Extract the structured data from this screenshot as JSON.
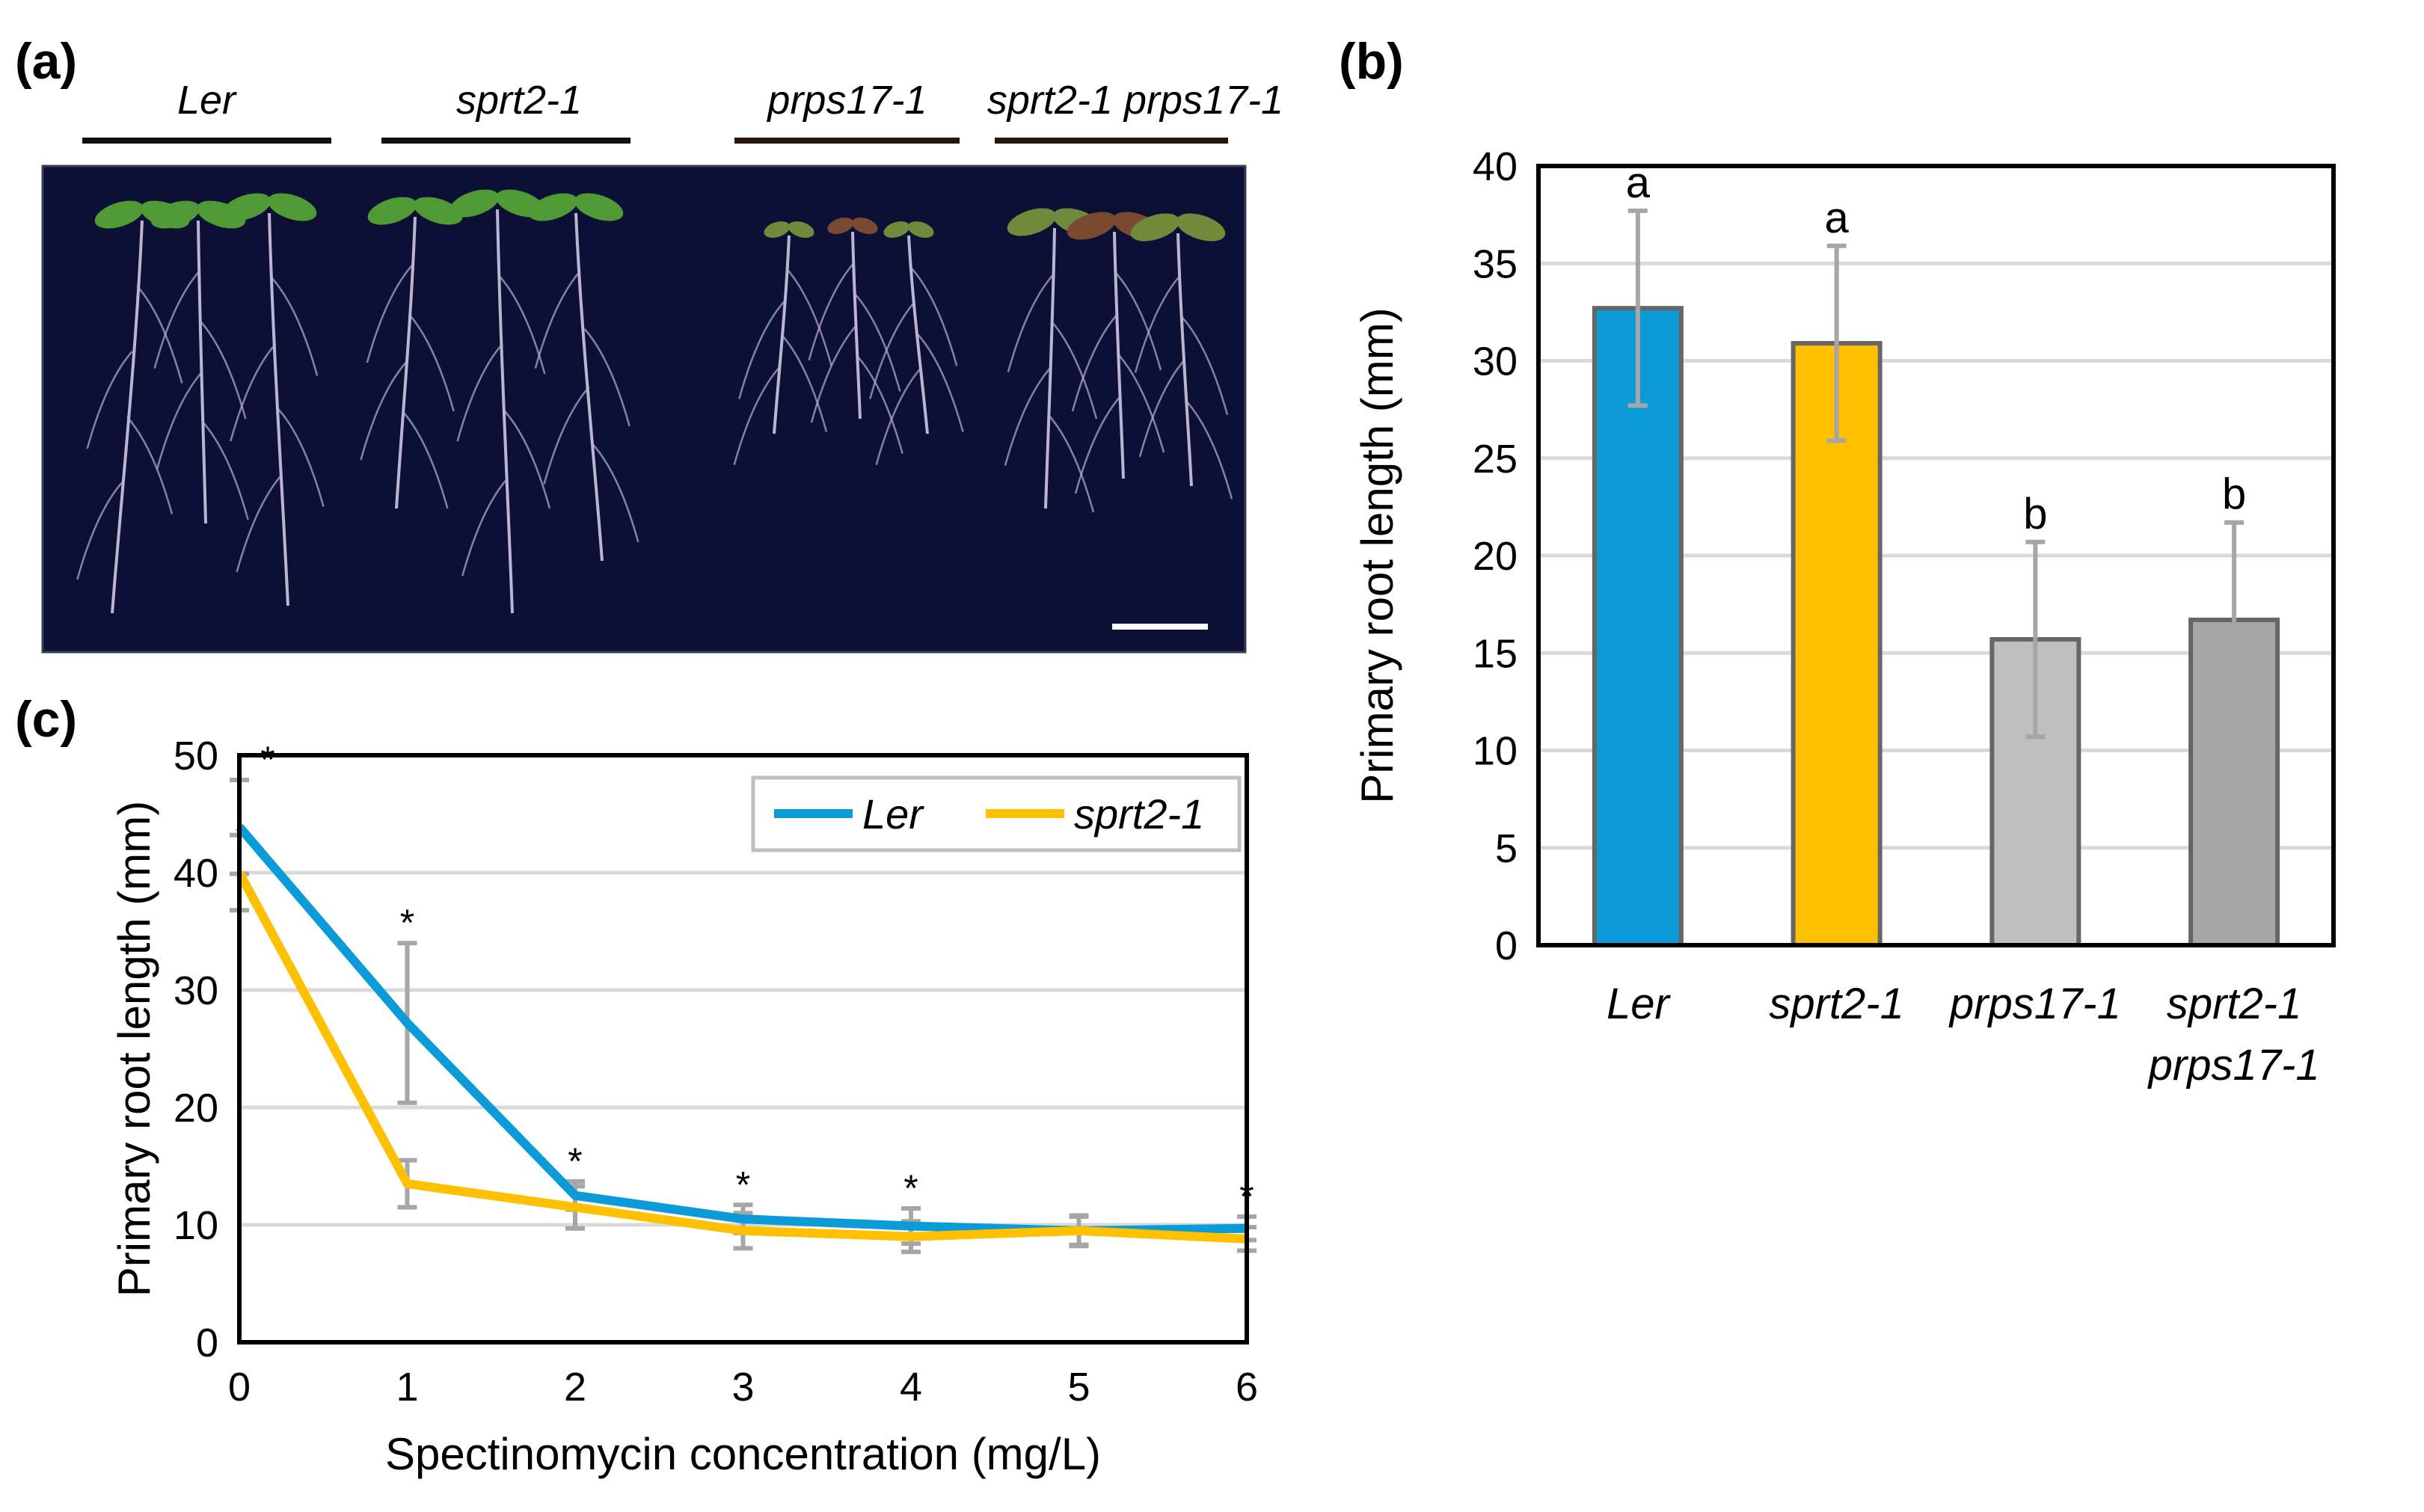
{
  "panels": {
    "a": {
      "label": "(a)",
      "genotypes": [
        "Ler",
        "sprt2-1",
        "prps17-1",
        "sprt2-1 prps17-1"
      ]
    },
    "b": {
      "label": "(b)"
    },
    "c": {
      "label": "(c)"
    }
  },
  "colors": {
    "ler": "#0a9bd8",
    "sprt2": "#ffc000",
    "prps17": "#bfbfbf",
    "double": "#a6a6a6",
    "errorbar": "#a6a6a6",
    "grid": "#d9d9d9",
    "photo_bg": "#0d1035"
  },
  "chart_data": [
    {
      "id": "b",
      "type": "bar",
      "categories": [
        "Ler",
        "sprt2-1",
        "prps17-1",
        "sprt2-1 prps17-1"
      ],
      "category_lines": [
        [
          "Ler"
        ],
        [
          "sprt2-1"
        ],
        [
          "prps17-1"
        ],
        [
          "sprt2-1",
          "prps17-1"
        ]
      ],
      "values": [
        32.7,
        30.9,
        15.7,
        16.7
      ],
      "errors": [
        5.0,
        5.0,
        5.0,
        5.0
      ],
      "significance": [
        "a",
        "a",
        "b",
        "b"
      ],
      "ylabel": "Primary root length (mm)",
      "ylim": [
        0,
        40
      ],
      "yticks": [
        0,
        5,
        10,
        15,
        20,
        25,
        30,
        35,
        40
      ],
      "grid": true
    },
    {
      "id": "c",
      "type": "line",
      "x": [
        0,
        1,
        2,
        3,
        4,
        5,
        6
      ],
      "series": [
        {
          "name": "Ler",
          "values": [
            43.9,
            27.2,
            12.5,
            10.5,
            9.9,
            9.5,
            9.7
          ],
          "errors": [
            4.0,
            6.8,
            1.2,
            1.2,
            1.5,
            1.2,
            1.0
          ]
        },
        {
          "name": "sprt2-1",
          "values": [
            40.0,
            13.5,
            11.5,
            9.5,
            9.0,
            9.5,
            8.8
          ],
          "errors": [
            3.2,
            2.0,
            1.8,
            1.5,
            1.3,
            1.3,
            1.0
          ]
        }
      ],
      "asterisks": [
        0,
        1,
        2,
        3,
        4,
        6
      ],
      "asterisk_symbol": "*",
      "xlabel": "Spectinomycin concentration (mg/L)",
      "ylabel": "Primary root length (mm)",
      "xlim": [
        0,
        6
      ],
      "ylim": [
        0,
        50
      ],
      "xticks": [
        0,
        1,
        2,
        3,
        4,
        5,
        6
      ],
      "yticks": [
        0,
        10,
        20,
        30,
        40,
        50
      ],
      "legend": "top-right",
      "grid": true
    }
  ]
}
